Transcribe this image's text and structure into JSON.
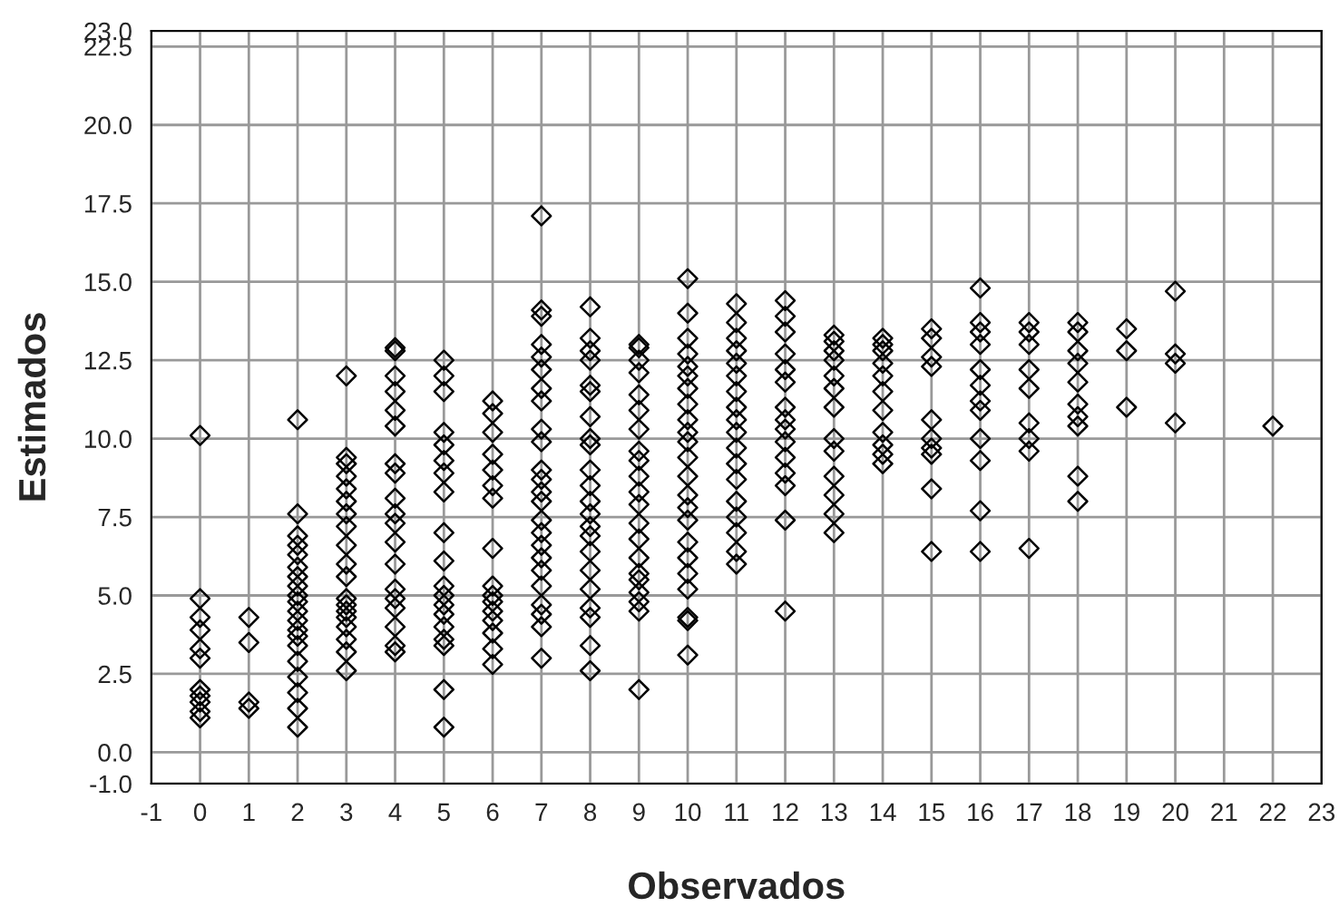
{
  "chart_data": {
    "type": "scatter",
    "xlabel": "Observados",
    "ylabel": "Estimados",
    "xlim": [
      -1,
      23
    ],
    "ylim": [
      -1,
      23
    ],
    "xticks": [
      -1,
      0,
      1,
      2,
      3,
      4,
      5,
      6,
      7,
      8,
      9,
      10,
      11,
      12,
      13,
      14,
      15,
      16,
      17,
      18,
      19,
      20,
      21,
      22,
      23
    ],
    "yticks": [
      {
        "value": -1,
        "label": "-1.0"
      },
      {
        "value": 0,
        "label": "0.0"
      },
      2.5,
      {
        "value": 5,
        "label": "5.0"
      },
      7.5,
      {
        "value": 10,
        "label": "10.0"
      },
      12.5,
      {
        "value": 15,
        "label": "15.0"
      },
      17.5,
      {
        "value": 20,
        "label": "20.0"
      },
      22.5,
      {
        "value": 23,
        "label": "23.0"
      }
    ],
    "grid": true,
    "marker": "diamond",
    "series": [
      {
        "color": "#000000",
        "x": [
          0,
          0,
          0,
          0,
          0,
          0,
          0,
          0,
          0,
          0,
          0,
          1,
          1,
          1,
          1,
          2,
          2,
          2,
          2,
          2,
          2,
          2,
          2,
          2,
          2,
          2,
          2,
          2,
          2,
          2,
          2,
          2,
          2,
          2,
          2,
          3,
          3,
          3,
          3,
          3,
          3,
          3,
          3,
          3,
          3,
          3,
          3,
          3,
          3,
          3,
          3,
          3,
          3,
          3,
          4,
          4,
          4,
          4,
          4,
          4,
          4,
          4,
          4,
          4,
          4,
          4,
          4,
          4,
          4,
          4,
          4,
          4,
          4,
          5,
          5,
          5,
          5,
          5,
          5,
          5,
          5,
          5,
          5,
          5,
          5,
          5,
          5,
          5,
          5,
          5,
          5,
          5,
          6,
          6,
          6,
          6,
          6,
          6,
          6,
          6,
          6,
          6,
          6,
          6,
          6,
          6,
          6,
          6,
          7,
          7,
          7,
          7,
          7,
          7,
          7,
          7,
          7,
          7,
          7,
          7,
          7,
          7,
          7,
          7,
          7,
          7,
          7,
          7,
          7,
          7,
          7,
          7,
          8,
          8,
          8,
          8,
          8,
          8,
          8,
          8,
          8,
          8,
          8,
          8,
          8,
          8,
          8,
          8,
          8,
          8,
          8,
          8,
          8,
          8,
          9,
          9,
          9,
          9,
          9,
          9,
          9,
          9,
          9,
          9,
          9,
          9,
          9,
          9,
          9,
          9,
          9,
          9,
          9,
          9,
          9,
          10,
          10,
          10,
          10,
          10,
          10,
          10,
          10,
          10,
          10,
          10,
          10,
          10,
          10,
          10,
          10,
          10,
          10,
          10,
          10,
          10,
          10,
          10,
          11,
          11,
          11,
          11,
          11,
          11,
          11,
          11,
          11,
          11,
          11,
          11,
          11,
          11,
          11,
          11,
          11,
          11,
          12,
          12,
          12,
          12,
          12,
          12,
          12,
          12,
          12,
          12,
          12,
          12,
          12,
          12,
          12,
          13,
          13,
          13,
          13,
          13,
          13,
          13,
          13,
          13,
          13,
          13,
          13,
          13,
          14,
          14,
          14,
          14,
          14,
          14,
          14,
          14,
          14,
          14,
          14,
          15,
          15,
          15,
          15,
          15,
          15,
          15,
          15,
          15,
          15,
          16,
          16,
          16,
          16,
          16,
          16,
          16,
          16,
          16,
          16,
          16,
          16,
          17,
          17,
          17,
          17,
          17,
          17,
          17,
          17,
          17,
          18,
          18,
          18,
          18,
          18,
          18,
          18,
          18,
          18,
          18,
          19,
          19,
          19,
          20,
          20,
          20,
          20,
          22
        ],
        "values": [
          10.1,
          4.9,
          4.3,
          3.9,
          3.3,
          3.0,
          2.0,
          1.8,
          1.6,
          1.3,
          1.1,
          4.3,
          3.5,
          1.6,
          1.4,
          10.6,
          7.6,
          6.9,
          6.6,
          6.3,
          5.9,
          5.6,
          5.3,
          5.0,
          4.8,
          4.5,
          4.2,
          3.9,
          3.7,
          3.4,
          2.9,
          2.4,
          1.9,
          1.4,
          0.8,
          12.0,
          9.4,
          9.2,
          8.8,
          8.4,
          8.0,
          7.6,
          7.2,
          6.6,
          6.0,
          5.6,
          4.9,
          4.7,
          4.5,
          4.3,
          4.0,
          3.6,
          3.2,
          2.6,
          12.9,
          12.8,
          12.0,
          11.5,
          10.9,
          10.4,
          9.2,
          8.9,
          8.1,
          7.6,
          7.3,
          6.7,
          6.0,
          5.2,
          4.9,
          4.6,
          4.0,
          3.4,
          3.2,
          12.5,
          12.0,
          11.5,
          10.2,
          9.8,
          9.3,
          8.9,
          8.3,
          7.0,
          6.1,
          5.3,
          5.0,
          4.7,
          4.4,
          4.0,
          3.6,
          3.4,
          2.0,
          0.8,
          11.2,
          10.8,
          10.2,
          9.5,
          9.0,
          8.5,
          8.1,
          6.5,
          5.3,
          5.0,
          4.8,
          4.5,
          4.2,
          3.8,
          3.3,
          2.8,
          17.1,
          14.1,
          13.9,
          13.0,
          12.6,
          12.2,
          11.6,
          11.2,
          10.3,
          9.9,
          9.0,
          8.7,
          8.3,
          8.0,
          7.4,
          7.0,
          6.6,
          6.2,
          5.8,
          5.3,
          4.7,
          4.4,
          4.0,
          3.0,
          14.2,
          13.2,
          12.8,
          12.5,
          11.7,
          11.5,
          10.7,
          10.0,
          9.8,
          9.0,
          8.5,
          8.0,
          7.6,
          7.2,
          6.9,
          6.4,
          5.8,
          5.2,
          4.6,
          4.3,
          3.4,
          2.6,
          13.0,
          12.9,
          12.5,
          12.1,
          11.4,
          10.9,
          10.3,
          9.6,
          9.3,
          8.8,
          8.3,
          7.9,
          7.3,
          6.8,
          6.2,
          5.7,
          5.5,
          5.1,
          4.8,
          4.5,
          2.0,
          15.1,
          14.0,
          13.2,
          12.7,
          12.3,
          12.0,
          11.6,
          11.1,
          10.6,
          10.2,
          9.9,
          9.4,
          8.8,
          8.2,
          7.8,
          7.4,
          6.7,
          6.2,
          5.7,
          5.2,
          4.3,
          4.2,
          3.1,
          14.3,
          13.7,
          13.2,
          12.8,
          12.4,
          12.0,
          11.5,
          11.0,
          10.6,
          10.2,
          9.7,
          9.2,
          8.7,
          8.0,
          7.5,
          7.0,
          6.4,
          6.0,
          14.4,
          13.9,
          13.4,
          12.7,
          12.2,
          11.8,
          11.0,
          10.6,
          10.3,
          9.9,
          9.4,
          8.9,
          8.5,
          7.4,
          4.5,
          13.3,
          13.1,
          12.8,
          12.5,
          12.0,
          11.6,
          11.0,
          10.0,
          9.6,
          8.8,
          8.2,
          7.6,
          7.0,
          13.2,
          13.0,
          12.8,
          12.4,
          12.0,
          11.5,
          10.9,
          10.2,
          9.8,
          9.5,
          9.2,
          13.5,
          13.2,
          12.6,
          12.3,
          10.6,
          10.0,
          9.7,
          9.5,
          8.4,
          6.4,
          14.8,
          13.7,
          13.4,
          13.0,
          12.2,
          11.7,
          11.2,
          10.9,
          10.0,
          9.3,
          7.7,
          6.4,
          13.7,
          13.4,
          13.0,
          12.2,
          11.6,
          10.5,
          10.0,
          9.6,
          6.5,
          13.7,
          13.4,
          12.8,
          12.4,
          11.8,
          11.1,
          10.7,
          10.4,
          8.8,
          8.0,
          13.5,
          12.8,
          11.0,
          14.7,
          12.7,
          12.4,
          10.5,
          10.4
        ]
      }
    ]
  }
}
